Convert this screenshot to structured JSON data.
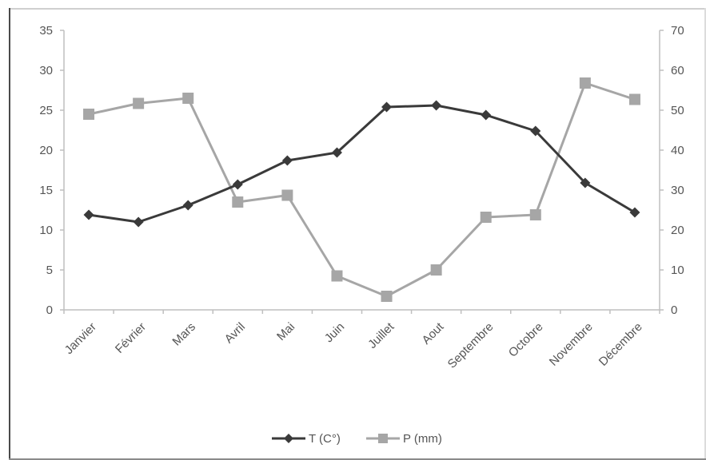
{
  "chart_data": {
    "type": "line",
    "categories": [
      "Janvier",
      "Février",
      "Mars",
      "Avril",
      "Mai",
      "Juin",
      "Juillet",
      "Aout",
      "Septembre",
      "Octobre",
      "Novembre",
      "Décembre"
    ],
    "series": [
      {
        "name": "T (C°)",
        "axis": "left",
        "color": "#3a3a3a",
        "marker": "diamond",
        "values": [
          11.9,
          11.0,
          13.1,
          15.7,
          18.7,
          19.7,
          25.4,
          25.6,
          24.4,
          22.4,
          15.9,
          12.2
        ]
      },
      {
        "name": "P (mm)",
        "axis": "right",
        "color": "#a6a6a6",
        "marker": "square",
        "values": [
          49,
          51.7,
          53,
          27,
          28.7,
          8.5,
          3.4,
          10,
          23.2,
          23.8,
          56.8,
          52.7
        ]
      }
    ],
    "y_left": {
      "min": 0,
      "max": 35,
      "ticks": [
        "0",
        "5",
        "10",
        "15",
        "20",
        "25",
        "30",
        "35"
      ]
    },
    "y_right": {
      "min": 0,
      "max": 70,
      "ticks": [
        "0",
        "10",
        "20",
        "30",
        "40",
        "50",
        "60",
        "70"
      ]
    },
    "grid": false,
    "legend": "bottom-center"
  }
}
